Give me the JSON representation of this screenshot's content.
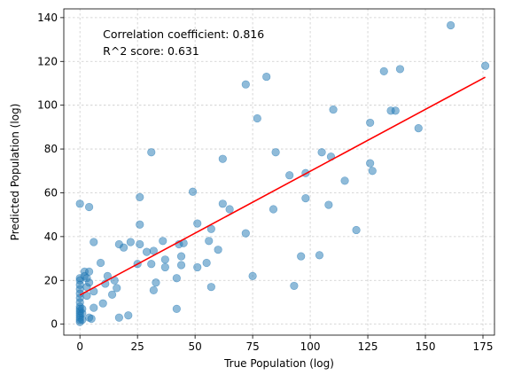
{
  "chart_data": {
    "type": "scatter",
    "xlabel": "True Population (log)",
    "ylabel": "Predicted Population (log)",
    "xlim": [
      -7,
      180
    ],
    "ylim": [
      -5,
      144
    ],
    "xticks": [
      0,
      25,
      50,
      75,
      100,
      125,
      150,
      175
    ],
    "yticks": [
      0,
      20,
      40,
      60,
      80,
      100,
      120,
      140
    ],
    "grid": true,
    "colors": {
      "points": "#1f77b4",
      "fit_line": "#ff0000"
    },
    "annotations": [
      "Correlation coefficient: 0.816",
      "R^2 score: 0.631"
    ],
    "fit_line": {
      "x": [
        0,
        176
      ],
      "y": [
        13.3,
        112.8
      ]
    },
    "points": [
      {
        "x": 0,
        "y": 1
      },
      {
        "x": 0,
        "y": 2
      },
      {
        "x": 0,
        "y": 3
      },
      {
        "x": 0,
        "y": 4
      },
      {
        "x": 0,
        "y": 5
      },
      {
        "x": 0,
        "y": 6
      },
      {
        "x": 0,
        "y": 7
      },
      {
        "x": 0,
        "y": 8
      },
      {
        "x": 0,
        "y": 10
      },
      {
        "x": 0,
        "y": 12
      },
      {
        "x": 0,
        "y": 14
      },
      {
        "x": 0,
        "y": 16
      },
      {
        "x": 0,
        "y": 18
      },
      {
        "x": 0,
        "y": 20
      },
      {
        "x": 0,
        "y": 21
      },
      {
        "x": 0,
        "y": 55
      },
      {
        "x": 1,
        "y": 2
      },
      {
        "x": 1,
        "y": 5
      },
      {
        "x": 1,
        "y": 7
      },
      {
        "x": 2,
        "y": 22
      },
      {
        "x": 2,
        "y": 24
      },
      {
        "x": 3,
        "y": 13
      },
      {
        "x": 3,
        "y": 17
      },
      {
        "x": 3,
        "y": 21
      },
      {
        "x": 4,
        "y": 3
      },
      {
        "x": 4,
        "y": 19
      },
      {
        "x": 4,
        "y": 24
      },
      {
        "x": 4,
        "y": 53.5
      },
      {
        "x": 5,
        "y": 2.5
      },
      {
        "x": 6,
        "y": 7.5
      },
      {
        "x": 6,
        "y": 15
      },
      {
        "x": 6,
        "y": 37.5
      },
      {
        "x": 9,
        "y": 28
      },
      {
        "x": 10,
        "y": 9.5
      },
      {
        "x": 11,
        "y": 18.5
      },
      {
        "x": 12,
        "y": 22
      },
      {
        "x": 14,
        "y": 13.5
      },
      {
        "x": 15,
        "y": 20
      },
      {
        "x": 16,
        "y": 16.5
      },
      {
        "x": 17,
        "y": 36.5
      },
      {
        "x": 17,
        "y": 3
      },
      {
        "x": 19,
        "y": 35
      },
      {
        "x": 21,
        "y": 4
      },
      {
        "x": 22,
        "y": 37.5
      },
      {
        "x": 25,
        "y": 27.5
      },
      {
        "x": 26,
        "y": 36.5
      },
      {
        "x": 26,
        "y": 45.5
      },
      {
        "x": 26,
        "y": 58
      },
      {
        "x": 29,
        "y": 33
      },
      {
        "x": 31,
        "y": 27.5
      },
      {
        "x": 31,
        "y": 78.5
      },
      {
        "x": 32,
        "y": 33.5
      },
      {
        "x": 32,
        "y": 15.5
      },
      {
        "x": 33,
        "y": 19
      },
      {
        "x": 36,
        "y": 38
      },
      {
        "x": 37,
        "y": 26
      },
      {
        "x": 37,
        "y": 29.5
      },
      {
        "x": 42,
        "y": 21
      },
      {
        "x": 42,
        "y": 7
      },
      {
        "x": 43,
        "y": 36.5
      },
      {
        "x": 44,
        "y": 27
      },
      {
        "x": 44,
        "y": 31
      },
      {
        "x": 45,
        "y": 37
      },
      {
        "x": 49,
        "y": 60.5
      },
      {
        "x": 51,
        "y": 46
      },
      {
        "x": 51,
        "y": 26
      },
      {
        "x": 55,
        "y": 28
      },
      {
        "x": 56,
        "y": 38
      },
      {
        "x": 57,
        "y": 17
      },
      {
        "x": 57,
        "y": 43.5
      },
      {
        "x": 60,
        "y": 34
      },
      {
        "x": 62,
        "y": 75.5
      },
      {
        "x": 62,
        "y": 55
      },
      {
        "x": 65,
        "y": 52.5
      },
      {
        "x": 72,
        "y": 41.5
      },
      {
        "x": 72,
        "y": 109.5
      },
      {
        "x": 75,
        "y": 22
      },
      {
        "x": 77,
        "y": 94
      },
      {
        "x": 81,
        "y": 113
      },
      {
        "x": 84,
        "y": 52.5
      },
      {
        "x": 85,
        "y": 78.5
      },
      {
        "x": 91,
        "y": 68
      },
      {
        "x": 93,
        "y": 17.5
      },
      {
        "x": 96,
        "y": 31
      },
      {
        "x": 98,
        "y": 57.5
      },
      {
        "x": 98,
        "y": 69
      },
      {
        "x": 104,
        "y": 31.5
      },
      {
        "x": 105,
        "y": 78.5
      },
      {
        "x": 108,
        "y": 54.5
      },
      {
        "x": 109,
        "y": 76.5
      },
      {
        "x": 110,
        "y": 98
      },
      {
        "x": 115,
        "y": 65.5
      },
      {
        "x": 120,
        "y": 43
      },
      {
        "x": 126,
        "y": 73.5
      },
      {
        "x": 126,
        "y": 92
      },
      {
        "x": 127,
        "y": 70
      },
      {
        "x": 132,
        "y": 115.5
      },
      {
        "x": 135,
        "y": 97.5
      },
      {
        "x": 137,
        "y": 97.5
      },
      {
        "x": 139,
        "y": 116.5
      },
      {
        "x": 147,
        "y": 89.5
      },
      {
        "x": 161,
        "y": 136.5
      },
      {
        "x": 176,
        "y": 118
      }
    ]
  }
}
